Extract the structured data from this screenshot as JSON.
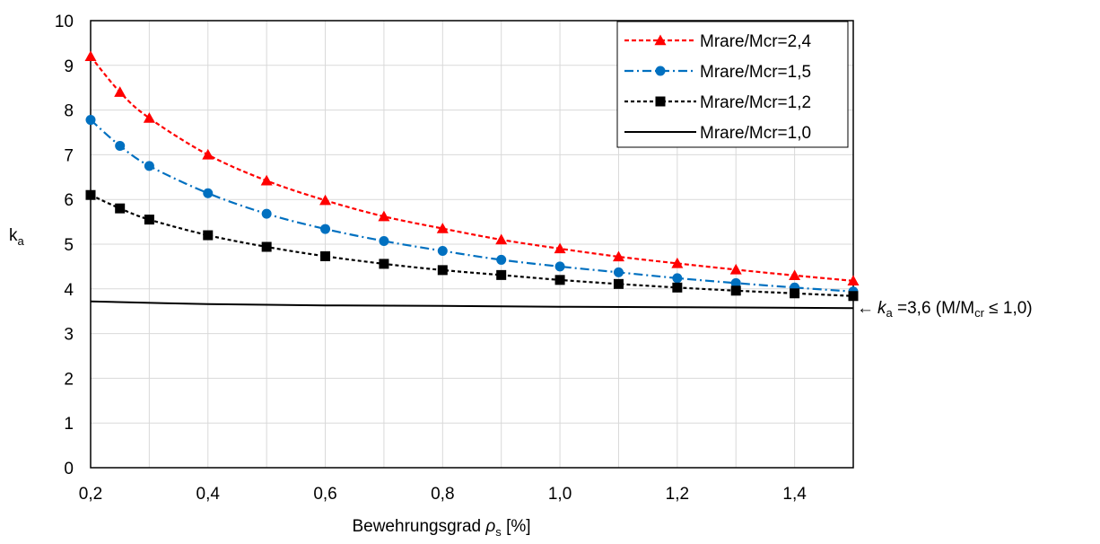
{
  "chart_data": {
    "type": "line",
    "xlim": [
      0.2,
      1.5
    ],
    "ylim": [
      0,
      10
    ],
    "x_ticks": [
      "0,2",
      "0,4",
      "0,6",
      "0,8",
      "1,0",
      "1,2",
      "1,4"
    ],
    "x_tick_values": [
      0.2,
      0.4,
      0.6,
      0.8,
      1.0,
      1.2,
      1.4
    ],
    "y_ticks": [
      "0",
      "1",
      "2",
      "3",
      "4",
      "5",
      "6",
      "7",
      "8",
      "9",
      "10"
    ],
    "y_tick_values": [
      0,
      1,
      2,
      3,
      4,
      5,
      6,
      7,
      8,
      9,
      10
    ],
    "x_vertical_grid": [
      0.2,
      0.3,
      0.4,
      0.5,
      0.6,
      0.7,
      0.8,
      0.9,
      1.0,
      1.1,
      1.2,
      1.3,
      1.4,
      1.5
    ],
    "grid": true,
    "xlabel_main": "Bewehrungsgrad ",
    "xlabel_symbol": "ρ",
    "xlabel_sub": "s",
    "xlabel_unit": " [%]",
    "ylabel_main": "k",
    "ylabel_sub": "a",
    "legend_position": "top-right",
    "annotation": {
      "arrow": "←",
      "k": "k",
      "k_sub": "a",
      "text1": " =3,6 (M/M",
      "sub": "cr",
      "text2": " ≤ 1,0)",
      "y": 3.6
    },
    "series": [
      {
        "name": "Mrare/Mcr=2,4",
        "color": "#ff0000",
        "marker": "triangle",
        "dash": "dashed",
        "x": [
          0.2,
          0.25,
          0.3,
          0.4,
          0.5,
          0.6,
          0.7,
          0.8,
          0.9,
          1.0,
          1.1,
          1.2,
          1.3,
          1.4,
          1.5
        ],
        "y": [
          9.2,
          8.4,
          7.82,
          7.0,
          6.42,
          5.98,
          5.62,
          5.35,
          5.1,
          4.9,
          4.72,
          4.57,
          4.43,
          4.3,
          4.18
        ]
      },
      {
        "name": "Mrare/Mcr=1,5",
        "color": "#0070c0",
        "marker": "circle",
        "dash": "dashdot",
        "x": [
          0.2,
          0.25,
          0.3,
          0.4,
          0.5,
          0.6,
          0.7,
          0.8,
          0.9,
          1.0,
          1.1,
          1.2,
          1.3,
          1.4,
          1.5
        ],
        "y": [
          7.78,
          7.2,
          6.75,
          6.14,
          5.68,
          5.34,
          5.07,
          4.85,
          4.65,
          4.5,
          4.37,
          4.24,
          4.13,
          4.03,
          3.94
        ]
      },
      {
        "name": "Mrare/Mcr=1,2",
        "color": "#000000",
        "marker": "square",
        "dash": "dotted",
        "x": [
          0.2,
          0.25,
          0.3,
          0.4,
          0.5,
          0.6,
          0.7,
          0.8,
          0.9,
          1.0,
          1.1,
          1.2,
          1.3,
          1.4,
          1.5
        ],
        "y": [
          6.1,
          5.8,
          5.55,
          5.2,
          4.94,
          4.73,
          4.56,
          4.42,
          4.31,
          4.2,
          4.11,
          4.03,
          3.96,
          3.9,
          3.84
        ]
      },
      {
        "name": "Mrare/Mcr=1,0",
        "color": "#000000",
        "marker": "none",
        "dash": "solid",
        "x": [
          0.2,
          0.4,
          0.6,
          0.8,
          1.0,
          1.2,
          1.5
        ],
        "y": [
          3.72,
          3.66,
          3.63,
          3.62,
          3.6,
          3.59,
          3.57
        ]
      }
    ]
  }
}
